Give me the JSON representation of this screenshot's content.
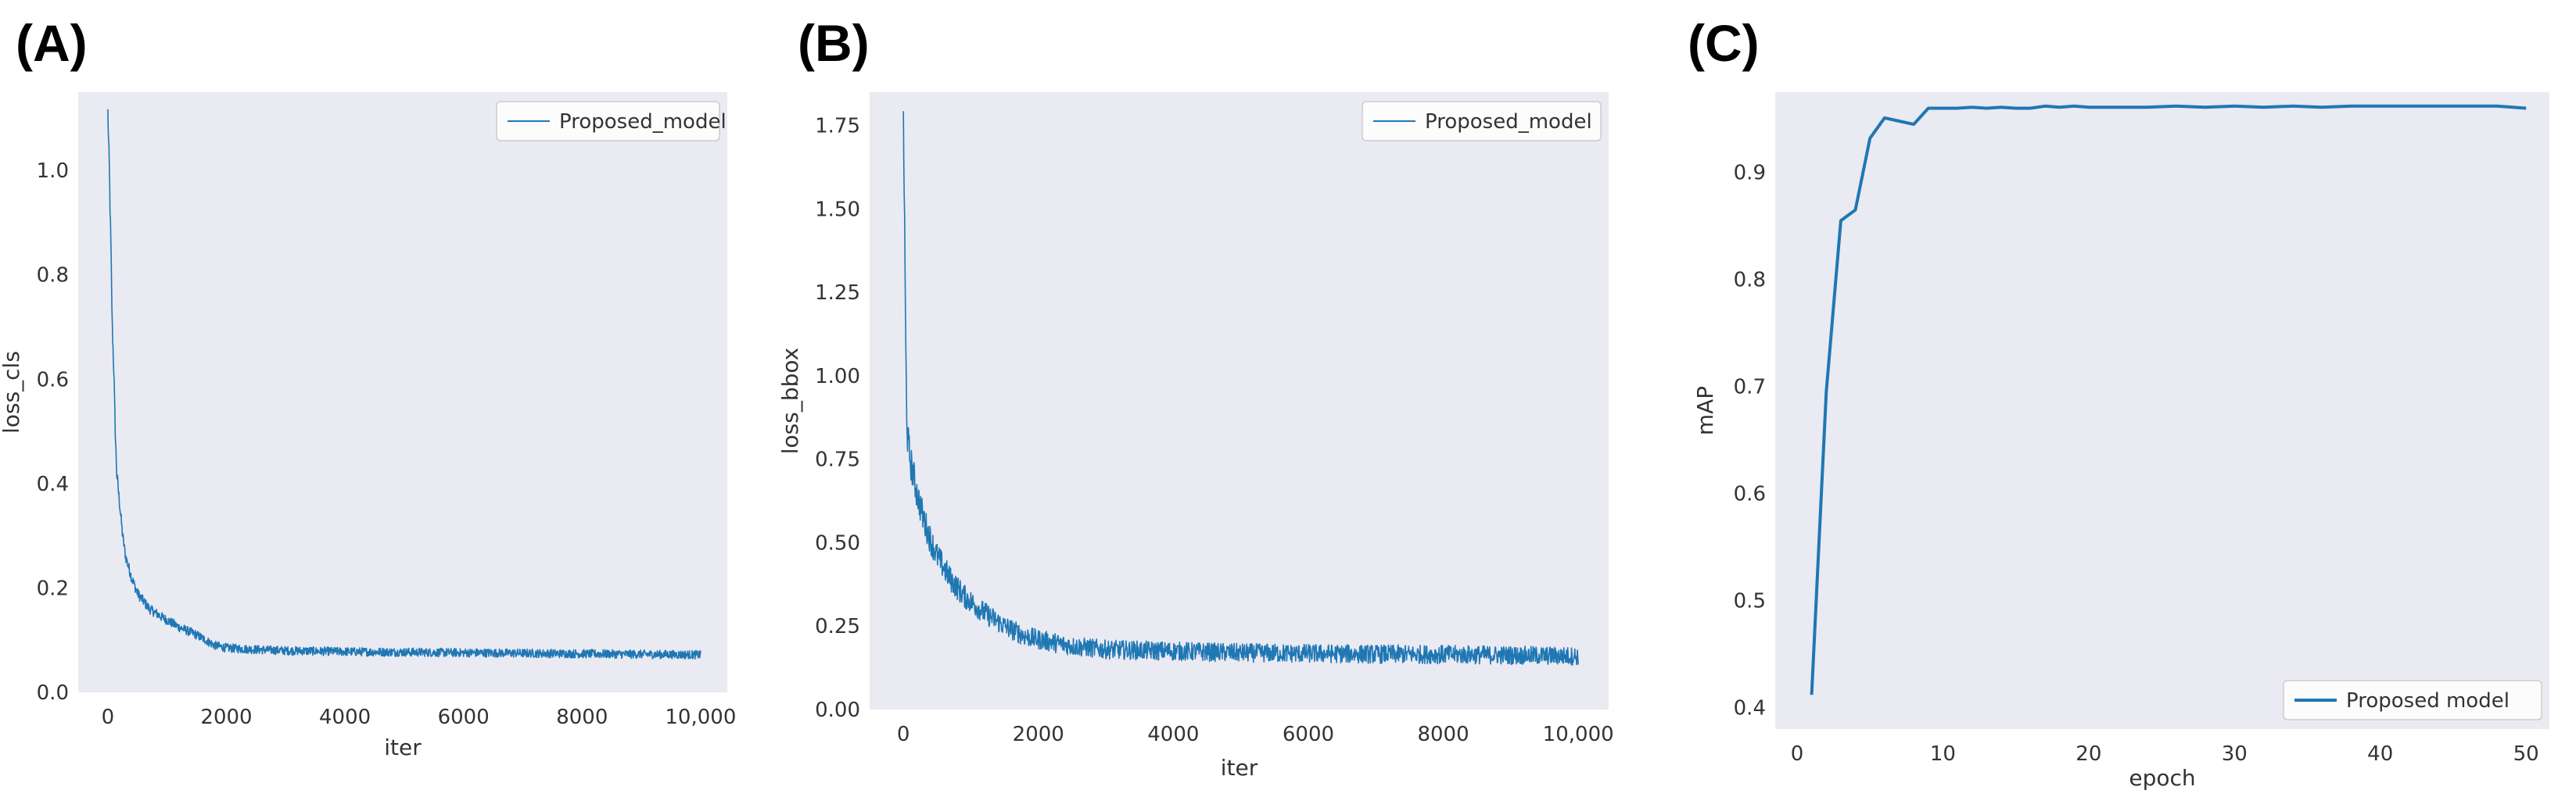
{
  "line_color": "#1f77b4",
  "plot_background": "#eaeaf2",
  "chart_data": [
    {
      "panel_label": "(A)",
      "type": "line",
      "xlabel": "iter",
      "ylabel": "loss_cls",
      "xlim": [
        -500,
        10450
      ],
      "ylim": [
        0,
        1.15
      ],
      "xticks": [
        0,
        2000,
        4000,
        6000,
        8000,
        10000
      ],
      "xtick_labels": [
        "0",
        "2000",
        "4000",
        "6000",
        "8000",
        "10,000"
      ],
      "yticks": [
        0.0,
        0.2,
        0.4,
        0.6,
        0.8,
        1.0
      ],
      "ytick_labels": [
        "0.0",
        "0.2",
        "0.4",
        "0.6",
        "0.8",
        "1.0"
      ],
      "grid": false,
      "legend_position": "top-right",
      "series": [
        {
          "name": "Proposed_model",
          "x": [
            0,
            25,
            50,
            75,
            100,
            125,
            150,
            200,
            250,
            300,
            400,
            500,
            700,
            900,
            1200,
            1500,
            1800,
            2000,
            2500,
            3000,
            4000,
            5000,
            6000,
            7000,
            8000,
            9000,
            10000
          ],
          "y": [
            1.11,
            1.0,
            0.86,
            0.7,
            0.62,
            0.5,
            0.42,
            0.36,
            0.3,
            0.26,
            0.22,
            0.19,
            0.16,
            0.145,
            0.125,
            0.11,
            0.09,
            0.085,
            0.082,
            0.08,
            0.078,
            0.077,
            0.076,
            0.075,
            0.074,
            0.073,
            0.072
          ],
          "noise_amplitude": 0.012
        }
      ]
    },
    {
      "panel_label": "(B)",
      "type": "line",
      "xlabel": "iter",
      "ylabel": "loss_bbox",
      "xlim": [
        -500,
        10450
      ],
      "ylim": [
        0,
        1.85
      ],
      "xticks": [
        0,
        2000,
        4000,
        6000,
        8000,
        10000
      ],
      "xtick_labels": [
        "0",
        "2000",
        "4000",
        "6000",
        "8000",
        "10,000"
      ],
      "yticks": [
        0.0,
        0.25,
        0.5,
        0.75,
        1.0,
        1.25,
        1.5,
        1.75
      ],
      "ytick_labels": [
        "0.00",
        "0.25",
        "0.50",
        "0.75",
        "1.00",
        "1.25",
        "1.50",
        "1.75"
      ],
      "grid": false,
      "legend_position": "top-right",
      "series": [
        {
          "name": "Proposed_model",
          "x": [
            0,
            20,
            40,
            60,
            100,
            150,
            200,
            300,
            400,
            500,
            700,
            900,
            1200,
            1500,
            1800,
            2000,
            2500,
            3000,
            4000,
            5000,
            6000,
            7000,
            8000,
            9000,
            10000
          ],
          "y": [
            1.8,
            1.4,
            1.0,
            0.82,
            0.75,
            0.7,
            0.65,
            0.57,
            0.51,
            0.46,
            0.39,
            0.34,
            0.29,
            0.25,
            0.22,
            0.21,
            0.19,
            0.18,
            0.175,
            0.17,
            0.168,
            0.166,
            0.165,
            0.163,
            0.16
          ],
          "noise_amplitude": 0.035
        }
      ]
    },
    {
      "panel_label": "(C)",
      "type": "line",
      "xlabel": "epoch",
      "ylabel": "mAP",
      "xlim": [
        -1.5,
        51.6
      ],
      "ylim": [
        0.38,
        0.975
      ],
      "xticks": [
        0,
        10,
        20,
        30,
        40,
        50
      ],
      "xtick_labels": [
        "0",
        "10",
        "20",
        "30",
        "40",
        "50"
      ],
      "yticks": [
        0.4,
        0.5,
        0.6,
        0.7,
        0.8,
        0.9
      ],
      "ytick_labels": [
        "0.4",
        "0.5",
        "0.6",
        "0.7",
        "0.8",
        "0.9"
      ],
      "grid": false,
      "legend_position": "bottom-right",
      "series": [
        {
          "name": "Proposed model",
          "x": [
            1,
            2,
            3,
            4,
            5,
            6,
            7,
            8,
            9,
            10,
            11,
            12,
            13,
            14,
            15,
            16,
            17,
            18,
            19,
            20,
            22,
            24,
            26,
            28,
            30,
            32,
            34,
            36,
            38,
            40,
            42,
            44,
            46,
            48,
            50
          ],
          "y": [
            0.412,
            0.695,
            0.855,
            0.865,
            0.932,
            0.951,
            0.948,
            0.945,
            0.96,
            0.96,
            0.96,
            0.961,
            0.96,
            0.961,
            0.96,
            0.96,
            0.962,
            0.961,
            0.962,
            0.961,
            0.961,
            0.961,
            0.962,
            0.961,
            0.962,
            0.961,
            0.962,
            0.961,
            0.962,
            0.962,
            0.962,
            0.962,
            0.962,
            0.962,
            0.96
          ]
        }
      ]
    }
  ]
}
